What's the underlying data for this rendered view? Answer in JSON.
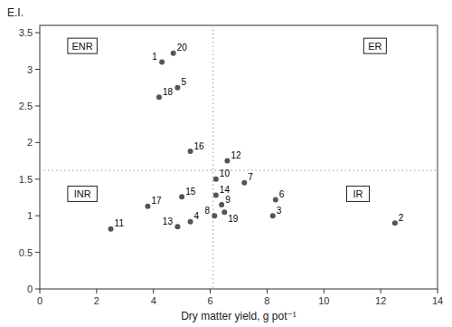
{
  "chart_data": {
    "type": "scatter",
    "x": [
      4.3,
      12.5,
      8.2,
      5.3,
      4.85,
      8.3,
      7.2,
      6.15,
      6.4,
      6.2,
      2.5,
      6.6,
      4.85,
      6.2,
      5.0,
      5.3,
      3.8,
      4.2,
      6.5,
      4.7
    ],
    "values": [
      3.1,
      0.9,
      1.0,
      0.92,
      2.75,
      1.22,
      1.45,
      1.0,
      1.15,
      1.5,
      0.82,
      1.75,
      0.85,
      1.28,
      1.26,
      1.88,
      1.13,
      2.62,
      1.05,
      3.22
    ],
    "point_labels": [
      "1",
      "2",
      "3",
      "4",
      "5",
      "6",
      "7",
      "8",
      "9",
      "10",
      "11",
      "12",
      "13",
      "14",
      "15",
      "16",
      "17",
      "18",
      "19",
      "20"
    ],
    "color": "#555555",
    "xlabel": "Dry matter yield, g pot⁻¹",
    "ylabel": "E.I.",
    "xlim": [
      0,
      14
    ],
    "ylim": [
      0,
      3.6
    ],
    "xticks": [
      0,
      2,
      4,
      6,
      8,
      10,
      12,
      14
    ],
    "yticks": [
      0,
      0.5,
      1,
      1.5,
      2,
      2.5,
      3,
      3.5
    ],
    "grid": false,
    "reference_lines": [
      {
        "axis": "x",
        "value": 6.1,
        "color": "#aaaaaa",
        "line_style": "dotted"
      },
      {
        "axis": "y",
        "value": 1.62,
        "color": "#aaaaaa",
        "line_style": "dotted"
      }
    ],
    "annotations": [
      {
        "text": "ENR",
        "x": 1.5,
        "y": 3.32
      },
      {
        "text": "ER",
        "x": 11.8,
        "y": 3.32
      },
      {
        "text": "INR",
        "x": 1.5,
        "y": 1.3
      },
      {
        "text": "IR",
        "x": 11.2,
        "y": 1.3
      }
    ]
  }
}
